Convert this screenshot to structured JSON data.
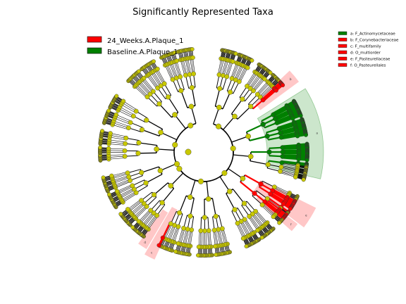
{
  "chart_data": {
    "type": "cladogram",
    "title": "Significantly Represented Taxa",
    "groups": [
      {
        "name": "24_Weeks.A.Plaque_1",
        "color": "#ff0000"
      },
      {
        "name": "Baseline.A.Plaque_1",
        "color": "#008000"
      }
    ],
    "clade_legend": [
      {
        "label": "a: F_Actinomycetaceae",
        "group": "Baseline.A.Plaque_1",
        "color": "#008000"
      },
      {
        "label": "b: F_Corynebacteriaceae",
        "group": "24_Weeks.A.Plaque_1",
        "color": "#ff0000"
      },
      {
        "label": "c: F_multifamily",
        "group": "24_Weeks.A.Plaque_1",
        "color": "#ff0000"
      },
      {
        "label": "d: O_multiorder",
        "group": "24_Weeks.A.Plaque_1",
        "color": "#ff0000"
      },
      {
        "label": "e: F_Pasteurellaceae",
        "group": "24_Weeks.A.Plaque_1",
        "color": "#ff0000"
      },
      {
        "label": "f: O_Pasteurellales",
        "group": "24_Weeks.A.Plaque_1",
        "color": "#ff0000"
      }
    ],
    "node_color_default": "#c8c800",
    "clade_letters": [
      "a",
      "b",
      "c",
      "d",
      "e",
      "f"
    ]
  }
}
